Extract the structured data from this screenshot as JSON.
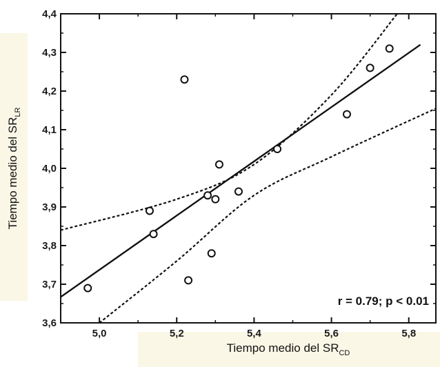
{
  "chart_data": {
    "type": "scatter",
    "title": "",
    "xlabel_main": "Tiempo medio del SR",
    "xlabel_sub": "CD",
    "ylabel_main": "Tiempo medio del SR",
    "ylabel_sub": "LR",
    "xlim": [
      4.9,
      5.87
    ],
    "ylim": [
      3.6,
      4.4
    ],
    "x_ticks": [
      {
        "value": 5.0,
        "label": "5,0"
      },
      {
        "value": 5.2,
        "label": "5,2"
      },
      {
        "value": 5.4,
        "label": "5,4"
      },
      {
        "value": 5.6,
        "label": "5,6"
      },
      {
        "value": 5.8,
        "label": "5,8"
      }
    ],
    "y_ticks": [
      {
        "value": 3.6,
        "label": "3,6"
      },
      {
        "value": 3.7,
        "label": "3,7"
      },
      {
        "value": 3.8,
        "label": "3,8"
      },
      {
        "value": 3.9,
        "label": "3,9"
      },
      {
        "value": 4.0,
        "label": "4,0"
      },
      {
        "value": 4.1,
        "label": "4,1"
      },
      {
        "value": 4.2,
        "label": "4,2"
      },
      {
        "value": 4.3,
        "label": "4,3"
      },
      {
        "value": 4.4,
        "label": "4,4"
      }
    ],
    "points": [
      {
        "x": 4.97,
        "y": 3.69
      },
      {
        "x": 5.13,
        "y": 3.89
      },
      {
        "x": 5.14,
        "y": 3.83
      },
      {
        "x": 5.22,
        "y": 4.23
      },
      {
        "x": 5.23,
        "y": 3.71
      },
      {
        "x": 5.28,
        "y": 3.93
      },
      {
        "x": 5.29,
        "y": 3.78
      },
      {
        "x": 5.3,
        "y": 3.92
      },
      {
        "x": 5.31,
        "y": 4.01
      },
      {
        "x": 5.36,
        "y": 3.94
      },
      {
        "x": 5.46,
        "y": 4.05
      },
      {
        "x": 5.64,
        "y": 4.14
      },
      {
        "x": 5.7,
        "y": 4.26
      },
      {
        "x": 5.75,
        "y": 4.31
      }
    ],
    "regression_line": [
      {
        "x": 4.9,
        "y": 3.667
      },
      {
        "x": 5.83,
        "y": 4.32
      }
    ],
    "confidence_upper": [
      {
        "x": 4.9,
        "y": 3.84
      },
      {
        "x": 5.2,
        "y": 3.92
      },
      {
        "x": 5.4,
        "y": 4.01
      },
      {
        "x": 5.6,
        "y": 4.19
      },
      {
        "x": 5.77,
        "y": 4.4
      }
    ],
    "confidence_lower": [
      {
        "x": 5.0,
        "y": 3.6
      },
      {
        "x": 5.2,
        "y": 3.76
      },
      {
        "x": 5.4,
        "y": 3.93
      },
      {
        "x": 5.6,
        "y": 4.03
      },
      {
        "x": 5.87,
        "y": 4.155
      }
    ],
    "annotation": "r = 0.79; p < 0.01",
    "grid": false,
    "colors": {
      "ink": "#111111",
      "label_highlight": "#fbf7e6"
    }
  }
}
